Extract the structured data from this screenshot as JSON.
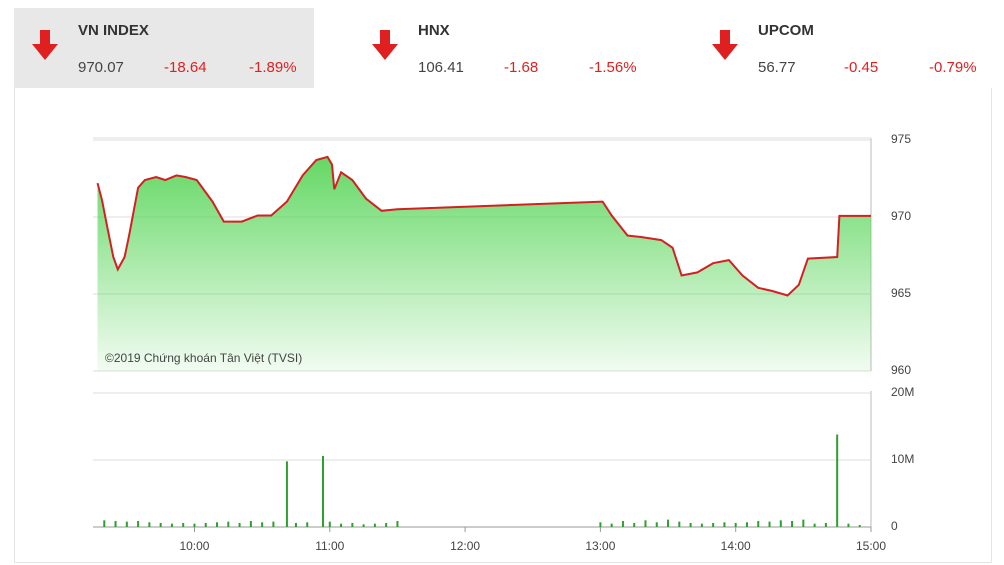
{
  "header": {
    "indices": [
      {
        "name": "VN INDEX",
        "value": 970.07,
        "change": -18.64,
        "percent": "-1.89%"
      },
      {
        "name": "HNX",
        "value": 106.41,
        "change": -1.68,
        "percent": "-1.56%"
      },
      {
        "name": "UPCOM",
        "value": 56.77,
        "change": -0.45,
        "percent": "-0.79%"
      }
    ]
  },
  "chart_data": [
    {
      "type": "area",
      "annotation": "©2019 Chứng khoán Tân Việt (TVSI)",
      "color": "#d42020",
      "fill": "#5cd65c",
      "x": [
        "09:17",
        "09:19",
        "09:21",
        "09:24",
        "09:26",
        "09:29",
        "09:31",
        "09:35",
        "09:38",
        "09:43",
        "09:47",
        "09:52",
        "09:56",
        "10:01",
        "10:08",
        "10:13",
        "10:21",
        "10:28",
        "10:34",
        "10:41",
        "10:48",
        "10:54",
        "10:59",
        "11:01",
        "11:02",
        "11:05",
        "11:10",
        "11:16",
        "11:23",
        "11:30",
        "13:01",
        "13:05",
        "13:12",
        "13:18",
        "13:27",
        "13:32",
        "13:36",
        "13:43",
        "13:50",
        "13:57",
        "14:03",
        "14:10",
        "14:16",
        "14:23",
        "14:28",
        "14:32",
        "14:45",
        "14:46",
        "15:00"
      ],
      "values": [
        972.2,
        971.1,
        969.6,
        967.4,
        966.6,
        967.4,
        968.8,
        971.9,
        972.4,
        972.6,
        972.4,
        972.7,
        972.6,
        972.4,
        971.0,
        969.7,
        969.7,
        970.1,
        970.1,
        971.0,
        972.7,
        973.7,
        973.9,
        973.4,
        971.8,
        972.9,
        972.4,
        971.2,
        970.4,
        970.5,
        971.0,
        970.1,
        968.8,
        968.7,
        968.5,
        968.0,
        966.2,
        966.4,
        967.0,
        967.2,
        966.2,
        965.4,
        965.2,
        964.9,
        965.6,
        967.3,
        967.4,
        970.07,
        970.07
      ],
      "xlim": [
        "09:15",
        "15:00"
      ],
      "ylim": [
        960,
        975
      ],
      "yticks": [
        960,
        965,
        970,
        975
      ],
      "grid": true
    },
    {
      "type": "bar",
      "color": "#2e9e2e",
      "x": [
        "09:20",
        "09:25",
        "09:30",
        "09:35",
        "09:40",
        "09:45",
        "09:50",
        "09:55",
        "10:00",
        "10:05",
        "10:10",
        "10:15",
        "10:20",
        "10:25",
        "10:30",
        "10:35",
        "10:41",
        "10:45",
        "10:50",
        "10:57",
        "11:00",
        "11:05",
        "11:10",
        "11:15",
        "11:20",
        "11:25",
        "11:30",
        "13:00",
        "13:05",
        "13:10",
        "13:15",
        "13:20",
        "13:25",
        "13:30",
        "13:35",
        "13:40",
        "13:45",
        "13:50",
        "13:55",
        "14:00",
        "14:05",
        "14:10",
        "14:15",
        "14:20",
        "14:25",
        "14:30",
        "14:35",
        "14:40",
        "14:45",
        "14:50",
        "14:55"
      ],
      "values": [
        1000000,
        900000,
        800000,
        900000,
        700000,
        600000,
        500000,
        600000,
        500000,
        600000,
        700000,
        800000,
        600000,
        900000,
        700000,
        800000,
        9800000,
        600000,
        700000,
        10600000,
        800000,
        500000,
        600000,
        400000,
        500000,
        600000,
        900000,
        700000,
        500000,
        900000,
        600000,
        1000000,
        700000,
        1100000,
        800000,
        600000,
        500000,
        600000,
        700000,
        600000,
        700000,
        900000,
        800000,
        1000000,
        900000,
        1100000,
        500000,
        600000,
        13800000,
        500000,
        300000
      ],
      "xlim": [
        "09:15",
        "15:00"
      ],
      "ylim": [
        0,
        20000000
      ],
      "yticks": [
        0,
        {
          "value": 10000000,
          "label": "10M"
        },
        {
          "value": 20000000,
          "label": "20M"
        }
      ],
      "xticks": [
        "10:00",
        "11:00",
        "12:00",
        "13:00",
        "14:00",
        "15:00"
      ],
      "grid": true
    }
  ]
}
